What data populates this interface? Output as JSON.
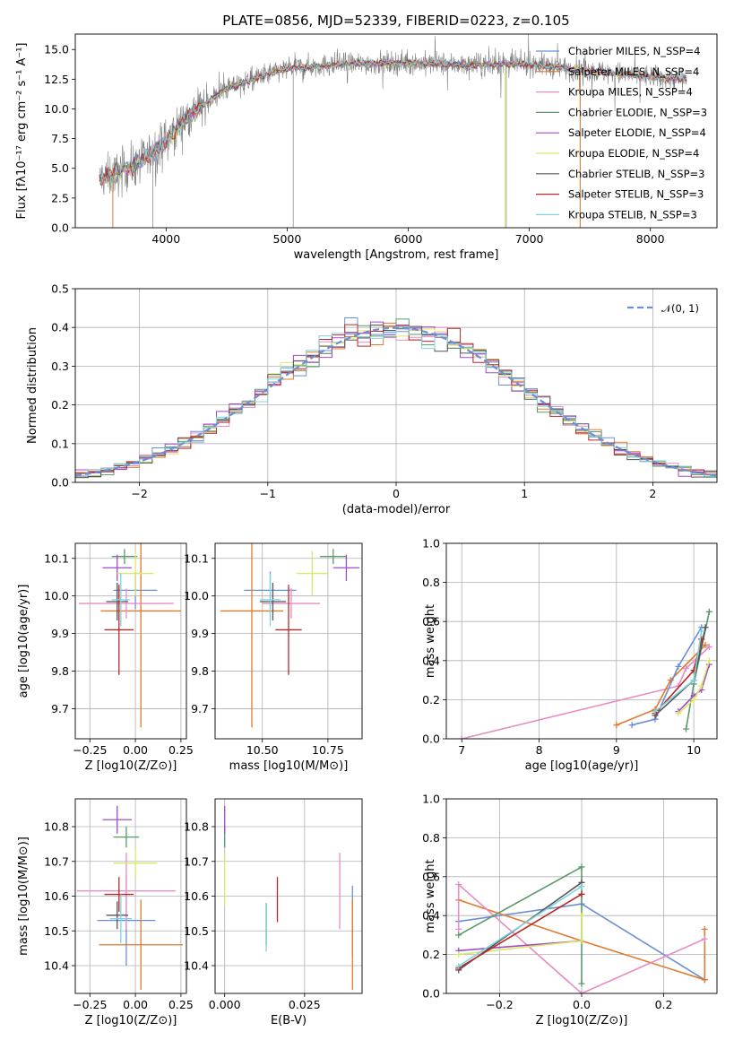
{
  "figure_title": "PLATE=0856, MJD=52339, FIBERID=0223, z=0.105",
  "colors": {
    "chabrier_miles": "#6b8fd6",
    "salpeter_miles": "#e07a2e",
    "kroupa_miles": "#e88cc4",
    "chabrier_elodie": "#5a9a6a",
    "salpeter_elodie": "#a24bc4",
    "kroupa_elodie": "#d9e86a",
    "chabrier_stelib": "#555555",
    "salpeter_stelib": "#b8282a",
    "kroupa_stelib": "#7fd3e0",
    "observed": "#808080",
    "normal": "#6b8fd6",
    "grid": "#b0b0b0"
  },
  "chart_data": [
    {
      "id": "spectrum",
      "type": "line",
      "title": "PLATE=0856, MJD=52339, FIBERID=0223, z=0.105",
      "xlabel": "wavelength [Angstrom, rest frame]",
      "ylabel": "Flux [fλ10⁻¹⁷ erg cm⁻² s⁻¹ A⁻¹]",
      "xlim": [
        3250,
        8550
      ],
      "ylim": [
        0,
        16.3
      ],
      "xticks": [
        "4000",
        "5000",
        "6000",
        "7000",
        "8000"
      ],
      "yticks": [
        "0.0",
        "2.5",
        "5.0",
        "7.5",
        "10.0",
        "12.5",
        "15.0"
      ],
      "grid": false,
      "legend_position": "top-right",
      "continuum": {
        "x": [
          3450,
          3600,
          3800,
          4000,
          4200,
          4500,
          4800,
          5000,
          5500,
          6000,
          6500,
          7000,
          7500,
          8000,
          8300
        ],
        "y": [
          4.1,
          4.6,
          5.6,
          7.3,
          9.6,
          11.7,
          12.8,
          13.4,
          13.8,
          13.9,
          13.7,
          13.8,
          13.2,
          12.7,
          12.5
        ]
      },
      "series": [
        {
          "name": "Chabrier MILES, N_SSP=4",
          "color_key": "chabrier_miles"
        },
        {
          "name": "Salpeter MILES, N_SSP=4",
          "color_key": "salpeter_miles"
        },
        {
          "name": "Kroupa MILES, N_SSP=4",
          "color_key": "kroupa_miles"
        },
        {
          "name": "Chabrier ELODIE, N_SSP=3",
          "color_key": "chabrier_elodie"
        },
        {
          "name": "Salpeter ELODIE, N_SSP=4",
          "color_key": "salpeter_elodie"
        },
        {
          "name": "Kroupa ELODIE, N_SSP=4",
          "color_key": "kroupa_elodie"
        },
        {
          "name": "Chabrier STELIB, N_SSP=3",
          "color_key": "chabrier_stelib"
        },
        {
          "name": "Salpeter STELIB, N_SSP=3",
          "color_key": "salpeter_stelib"
        },
        {
          "name": "Kroupa STELIB, N_SSP=3",
          "color_key": "kroupa_stelib"
        }
      ]
    },
    {
      "id": "residuals",
      "type": "line",
      "xlabel": "(data-model)/error",
      "ylabel": "Normed distribution",
      "xlim": [
        -2.5,
        2.5
      ],
      "ylim": [
        0,
        0.5
      ],
      "xticks": [
        "−2",
        "−1",
        "0",
        "1",
        "2"
      ],
      "yticks": [
        "0.0",
        "0.1",
        "0.2",
        "0.3",
        "0.4",
        "0.5"
      ],
      "grid": true,
      "legend_position": "top-right",
      "legend_label": "𝒩(0, 1)",
      "bin_width": 0.1,
      "normal_curve": {
        "mean": 0,
        "sigma": 1,
        "style": "dashed"
      }
    },
    {
      "id": "age_vs_Z",
      "type": "scatter",
      "xlabel": "Z [log10(Z/Z⊙)]",
      "ylabel": "age  [log10(age/yr)]",
      "xlim": [
        -0.33,
        0.28
      ],
      "ylim": [
        9.62,
        10.14
      ],
      "xticks": [
        "−0.25",
        "0.00",
        "0.25"
      ],
      "yticks": [
        "9.7",
        "9.8",
        "9.9",
        "10.0",
        "10.1"
      ],
      "grid": true,
      "points": [
        {
          "color_key": "chabrier_miles",
          "x": 0.0,
          "xerr": 0.12,
          "y": 10.015,
          "yerr": 0.05
        },
        {
          "color_key": "salpeter_miles",
          "x": 0.03,
          "xerr": 0.22,
          "y": 9.96,
          "yerr": 0.31
        },
        {
          "color_key": "kroupa_miles",
          "x": -0.05,
          "xerr": 0.26,
          "y": 9.98,
          "yerr": 0.04
        },
        {
          "color_key": "chabrier_elodie",
          "x": -0.06,
          "xerr": 0.07,
          "y": 10.105,
          "yerr": 0.02
        },
        {
          "color_key": "salpeter_elodie",
          "x": -0.1,
          "xerr": 0.08,
          "y": 10.075,
          "yerr": 0.035
        },
        {
          "color_key": "kroupa_elodie",
          "x": 0.0,
          "xerr": 0.1,
          "y": 10.06,
          "yerr": 0.06
        },
        {
          "color_key": "chabrier_stelib",
          "x": -0.1,
          "xerr": 0.06,
          "y": 9.985,
          "yerr": 0.05
        },
        {
          "color_key": "salpeter_stelib",
          "x": -0.09,
          "xerr": 0.08,
          "y": 9.91,
          "yerr": 0.12
        },
        {
          "color_key": "kroupa_stelib",
          "x": -0.08,
          "xerr": 0.05,
          "y": 9.99,
          "yerr": 0.07
        }
      ]
    },
    {
      "id": "age_vs_mass",
      "type": "scatter",
      "xlabel": "mass [log10(M/M⊙)]",
      "ylabel": "",
      "xlim": [
        10.32,
        10.88
      ],
      "ylim": [
        9.62,
        10.14
      ],
      "xticks": [
        "10.50",
        "10.75"
      ],
      "yticks": [
        "9.7",
        "9.8",
        "9.9",
        "10.0",
        "10.1"
      ],
      "grid": true,
      "points": [
        {
          "color_key": "chabrier_miles",
          "x": 10.53,
          "xerr": 0.1,
          "y": 10.015,
          "yerr": 0.05
        },
        {
          "color_key": "salpeter_miles",
          "x": 10.46,
          "xerr": 0.12,
          "y": 9.96,
          "yerr": 0.31
        },
        {
          "color_key": "kroupa_miles",
          "x": 10.61,
          "xerr": 0.11,
          "y": 9.98,
          "yerr": 0.04
        },
        {
          "color_key": "chabrier_elodie",
          "x": 10.77,
          "xerr": 0.05,
          "y": 10.105,
          "yerr": 0.02
        },
        {
          "color_key": "salpeter_elodie",
          "x": 10.82,
          "xerr": 0.05,
          "y": 10.075,
          "yerr": 0.035
        },
        {
          "color_key": "kroupa_elodie",
          "x": 10.69,
          "xerr": 0.06,
          "y": 10.06,
          "yerr": 0.06
        },
        {
          "color_key": "chabrier_stelib",
          "x": 10.54,
          "xerr": 0.05,
          "y": 9.985,
          "yerr": 0.05
        },
        {
          "color_key": "salpeter_stelib",
          "x": 10.6,
          "xerr": 0.05,
          "y": 9.91,
          "yerr": 0.12
        },
        {
          "color_key": "kroupa_stelib",
          "x": 10.53,
          "xerr": 0.04,
          "y": 9.99,
          "yerr": 0.07
        }
      ]
    },
    {
      "id": "weight_vs_age",
      "type": "line",
      "xlabel": "age  [log10(age/yr)]",
      "ylabel": "mass weight",
      "xlim": [
        6.8,
        10.3
      ],
      "ylim": [
        0,
        1
      ],
      "xticks": [
        "7",
        "8",
        "9",
        "10"
      ],
      "yticks": [
        "0.0",
        "0.2",
        "0.4",
        "0.6",
        "0.8",
        "1.0"
      ],
      "grid": true,
      "series": [
        {
          "color_key": "kroupa_miles",
          "x": [
            7.0,
            9.8,
            9.9,
            10.2
          ],
          "y": [
            0.0,
            0.27,
            0.36,
            0.47
          ]
        },
        {
          "color_key": "salpeter_miles",
          "x": [
            9.0,
            9.5,
            9.7,
            10.15
          ],
          "y": [
            0.07,
            0.15,
            0.3,
            0.48
          ]
        },
        {
          "color_key": "chabrier_miles",
          "x": [
            9.2,
            9.5,
            9.8,
            10.1
          ],
          "y": [
            0.07,
            0.1,
            0.37,
            0.57
          ]
        },
        {
          "color_key": "chabrier_elodie",
          "x": [
            9.9,
            10.0,
            10.2
          ],
          "y": [
            0.05,
            0.28,
            0.65
          ]
        },
        {
          "color_key": "salpeter_elodie",
          "x": [
            9.8,
            10.0,
            10.1,
            10.2
          ],
          "y": [
            0.14,
            0.22,
            0.25,
            0.38
          ]
        },
        {
          "color_key": "kroupa_elodie",
          "x": [
            9.8,
            10.0,
            10.1,
            10.2
          ],
          "y": [
            0.13,
            0.2,
            0.27,
            0.4
          ]
        },
        {
          "color_key": "chabrier_stelib",
          "x": [
            9.5,
            10.0,
            10.15
          ],
          "y": [
            0.12,
            0.3,
            0.57
          ]
        },
        {
          "color_key": "salpeter_stelib",
          "x": [
            9.5,
            10.0,
            10.1
          ],
          "y": [
            0.13,
            0.35,
            0.51
          ]
        },
        {
          "color_key": "kroupa_stelib",
          "x": [
            9.5,
            10.0,
            10.1
          ],
          "y": [
            0.14,
            0.3,
            0.55
          ]
        }
      ]
    },
    {
      "id": "mass_vs_Z",
      "type": "scatter",
      "xlabel": "Z [log10(Z/Z⊙)]",
      "ylabel": "mass [log10(M/M⊙)]",
      "xlim": [
        -0.33,
        0.28
      ],
      "ylim": [
        10.32,
        10.88
      ],
      "xticks": [
        "−0.25",
        "0.00",
        "0.25"
      ],
      "yticks": [
        "10.4",
        "10.5",
        "10.6",
        "10.7",
        "10.8"
      ],
      "grid": true,
      "points": [
        {
          "color_key": "chabrier_miles",
          "x": -0.05,
          "xerr": 0.16,
          "y": 10.53,
          "yerr": 0.13
        },
        {
          "color_key": "salpeter_miles",
          "x": 0.03,
          "xerr": 0.23,
          "y": 10.46,
          "yerr": 0.13
        },
        {
          "color_key": "kroupa_miles",
          "x": -0.05,
          "xerr": 0.27,
          "y": 10.615,
          "yerr": 0.11
        },
        {
          "color_key": "chabrier_elodie",
          "x": -0.05,
          "xerr": 0.07,
          "y": 10.77,
          "yerr": 0.03
        },
        {
          "color_key": "salpeter_elodie",
          "x": -0.1,
          "xerr": 0.08,
          "y": 10.82,
          "yerr": 0.04
        },
        {
          "color_key": "kroupa_elodie",
          "x": 0.0,
          "xerr": 0.12,
          "y": 10.695,
          "yerr": 0.04
        },
        {
          "color_key": "chabrier_stelib",
          "x": -0.1,
          "xerr": 0.06,
          "y": 10.545,
          "yerr": 0.04
        },
        {
          "color_key": "salpeter_stelib",
          "x": -0.09,
          "xerr": 0.08,
          "y": 10.605,
          "yerr": 0.05
        },
        {
          "color_key": "kroupa_stelib",
          "x": -0.08,
          "xerr": 0.06,
          "y": 10.535,
          "yerr": 0.07
        }
      ]
    },
    {
      "id": "mass_vs_ebv",
      "type": "scatter",
      "xlabel": "E(B-V)",
      "ylabel": "",
      "xlim": [
        -0.003,
        0.043
      ],
      "ylim": [
        10.32,
        10.88
      ],
      "xticks": [
        "0.000",
        "0.025"
      ],
      "yticks": [
        "10.4",
        "10.5",
        "10.6",
        "10.7",
        "10.8"
      ],
      "grid": true,
      "points": [
        {
          "color_key": "chabrier_miles",
          "x": 0.04,
          "y": 10.53,
          "yerr": 0.1
        },
        {
          "color_key": "salpeter_miles",
          "x": 0.04,
          "y": 10.46,
          "yerr": 0.13
        },
        {
          "color_key": "kroupa_miles",
          "x": 0.036,
          "y": 10.615,
          "yerr": 0.11
        },
        {
          "color_key": "chabrier_elodie",
          "x": 0.0,
          "y": 10.77,
          "yerr": 0.03
        },
        {
          "color_key": "salpeter_elodie",
          "x": 0.0,
          "y": 10.82,
          "yerr": 0.04
        },
        {
          "color_key": "kroupa_elodie",
          "x": 0.0,
          "y": 10.645,
          "yerr": 0.075
        },
        {
          "color_key": "chabrier_stelib",
          "x": 0.013,
          "y": 10.52,
          "yerr": 0.06
        },
        {
          "color_key": "salpeter_stelib",
          "x": 0.0165,
          "y": 10.59,
          "yerr": 0.065
        },
        {
          "color_key": "kroupa_stelib",
          "x": 0.013,
          "y": 10.51,
          "yerr": 0.07
        }
      ]
    },
    {
      "id": "weight_vs_Z",
      "type": "line",
      "xlabel": "Z [log10(Z/Z⊙)]",
      "ylabel": "mass weight",
      "xlim": [
        -0.33,
        0.33
      ],
      "ylim": [
        0,
        1
      ],
      "xticks": [
        "−0.2",
        "0.0",
        "0.2"
      ],
      "yticks": [
        "0.0",
        "0.2",
        "0.4",
        "0.6",
        "0.8",
        "1.0"
      ],
      "grid": true,
      "series": [
        {
          "color_key": "chabrier_miles",
          "x": [
            -0.3,
            0.0,
            0.3
          ],
          "y": [
            0.37,
            0.46,
            0.07
          ]
        },
        {
          "color_key": "salpeter_miles",
          "x": [
            -0.3,
            0.0,
            0.3,
            0.3
          ],
          "y": [
            0.48,
            0.27,
            0.07,
            0.33
          ]
        },
        {
          "color_key": "kroupa_miles",
          "x": [
            -0.3,
            -0.3,
            0.0,
            0.3
          ],
          "y": [
            0.33,
            0.56,
            0.0,
            0.28
          ]
        },
        {
          "color_key": "chabrier_elodie",
          "x": [
            -0.3,
            0.0,
            0.0
          ],
          "y": [
            0.3,
            0.65,
            0.05
          ]
        },
        {
          "color_key": "salpeter_elodie",
          "x": [
            -0.3,
            0.0
          ],
          "y": [
            0.22,
            0.27
          ]
        },
        {
          "color_key": "kroupa_elodie",
          "x": [
            -0.3,
            0.0,
            0.0
          ],
          "y": [
            0.2,
            0.27,
            0.4
          ]
        },
        {
          "color_key": "chabrier_stelib",
          "x": [
            -0.3,
            0.0
          ],
          "y": [
            0.12,
            0.57
          ]
        },
        {
          "color_key": "salpeter_stelib",
          "x": [
            -0.3,
            0.0
          ],
          "y": [
            0.13,
            0.51
          ]
        },
        {
          "color_key": "kroupa_stelib",
          "x": [
            -0.3,
            0.0
          ],
          "y": [
            0.14,
            0.55
          ]
        }
      ]
    }
  ]
}
